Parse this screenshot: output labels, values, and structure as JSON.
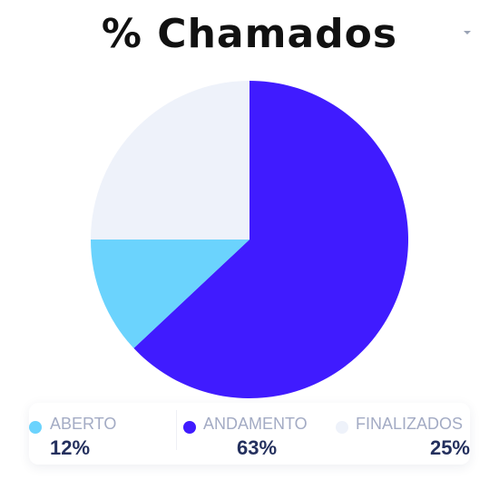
{
  "chart_data": {
    "type": "pie",
    "title": "% Chamados",
    "slices": [
      {
        "label": "ANDAMENTO",
        "value": 63,
        "display": "63%",
        "color": "#401bff"
      },
      {
        "label": "ABERTO",
        "value": 12,
        "display": "12%",
        "color": "#6bd3fd"
      },
      {
        "label": "FINALIZADOS",
        "value": 25,
        "display": "25%",
        "color": "#eef2fa"
      }
    ],
    "legend": {
      "placement": "bottom",
      "items": [
        {
          "label": "ABERTO",
          "value": "12%",
          "color": "#6bd3fd"
        },
        {
          "label": "ANDAMENTO",
          "value": "63%",
          "color": "#401bff"
        },
        {
          "label": "FINALIZADOS",
          "value": "25%",
          "color": "#eef2fa"
        }
      ]
    }
  },
  "menu": {
    "icon": "chevron-down-icon"
  }
}
